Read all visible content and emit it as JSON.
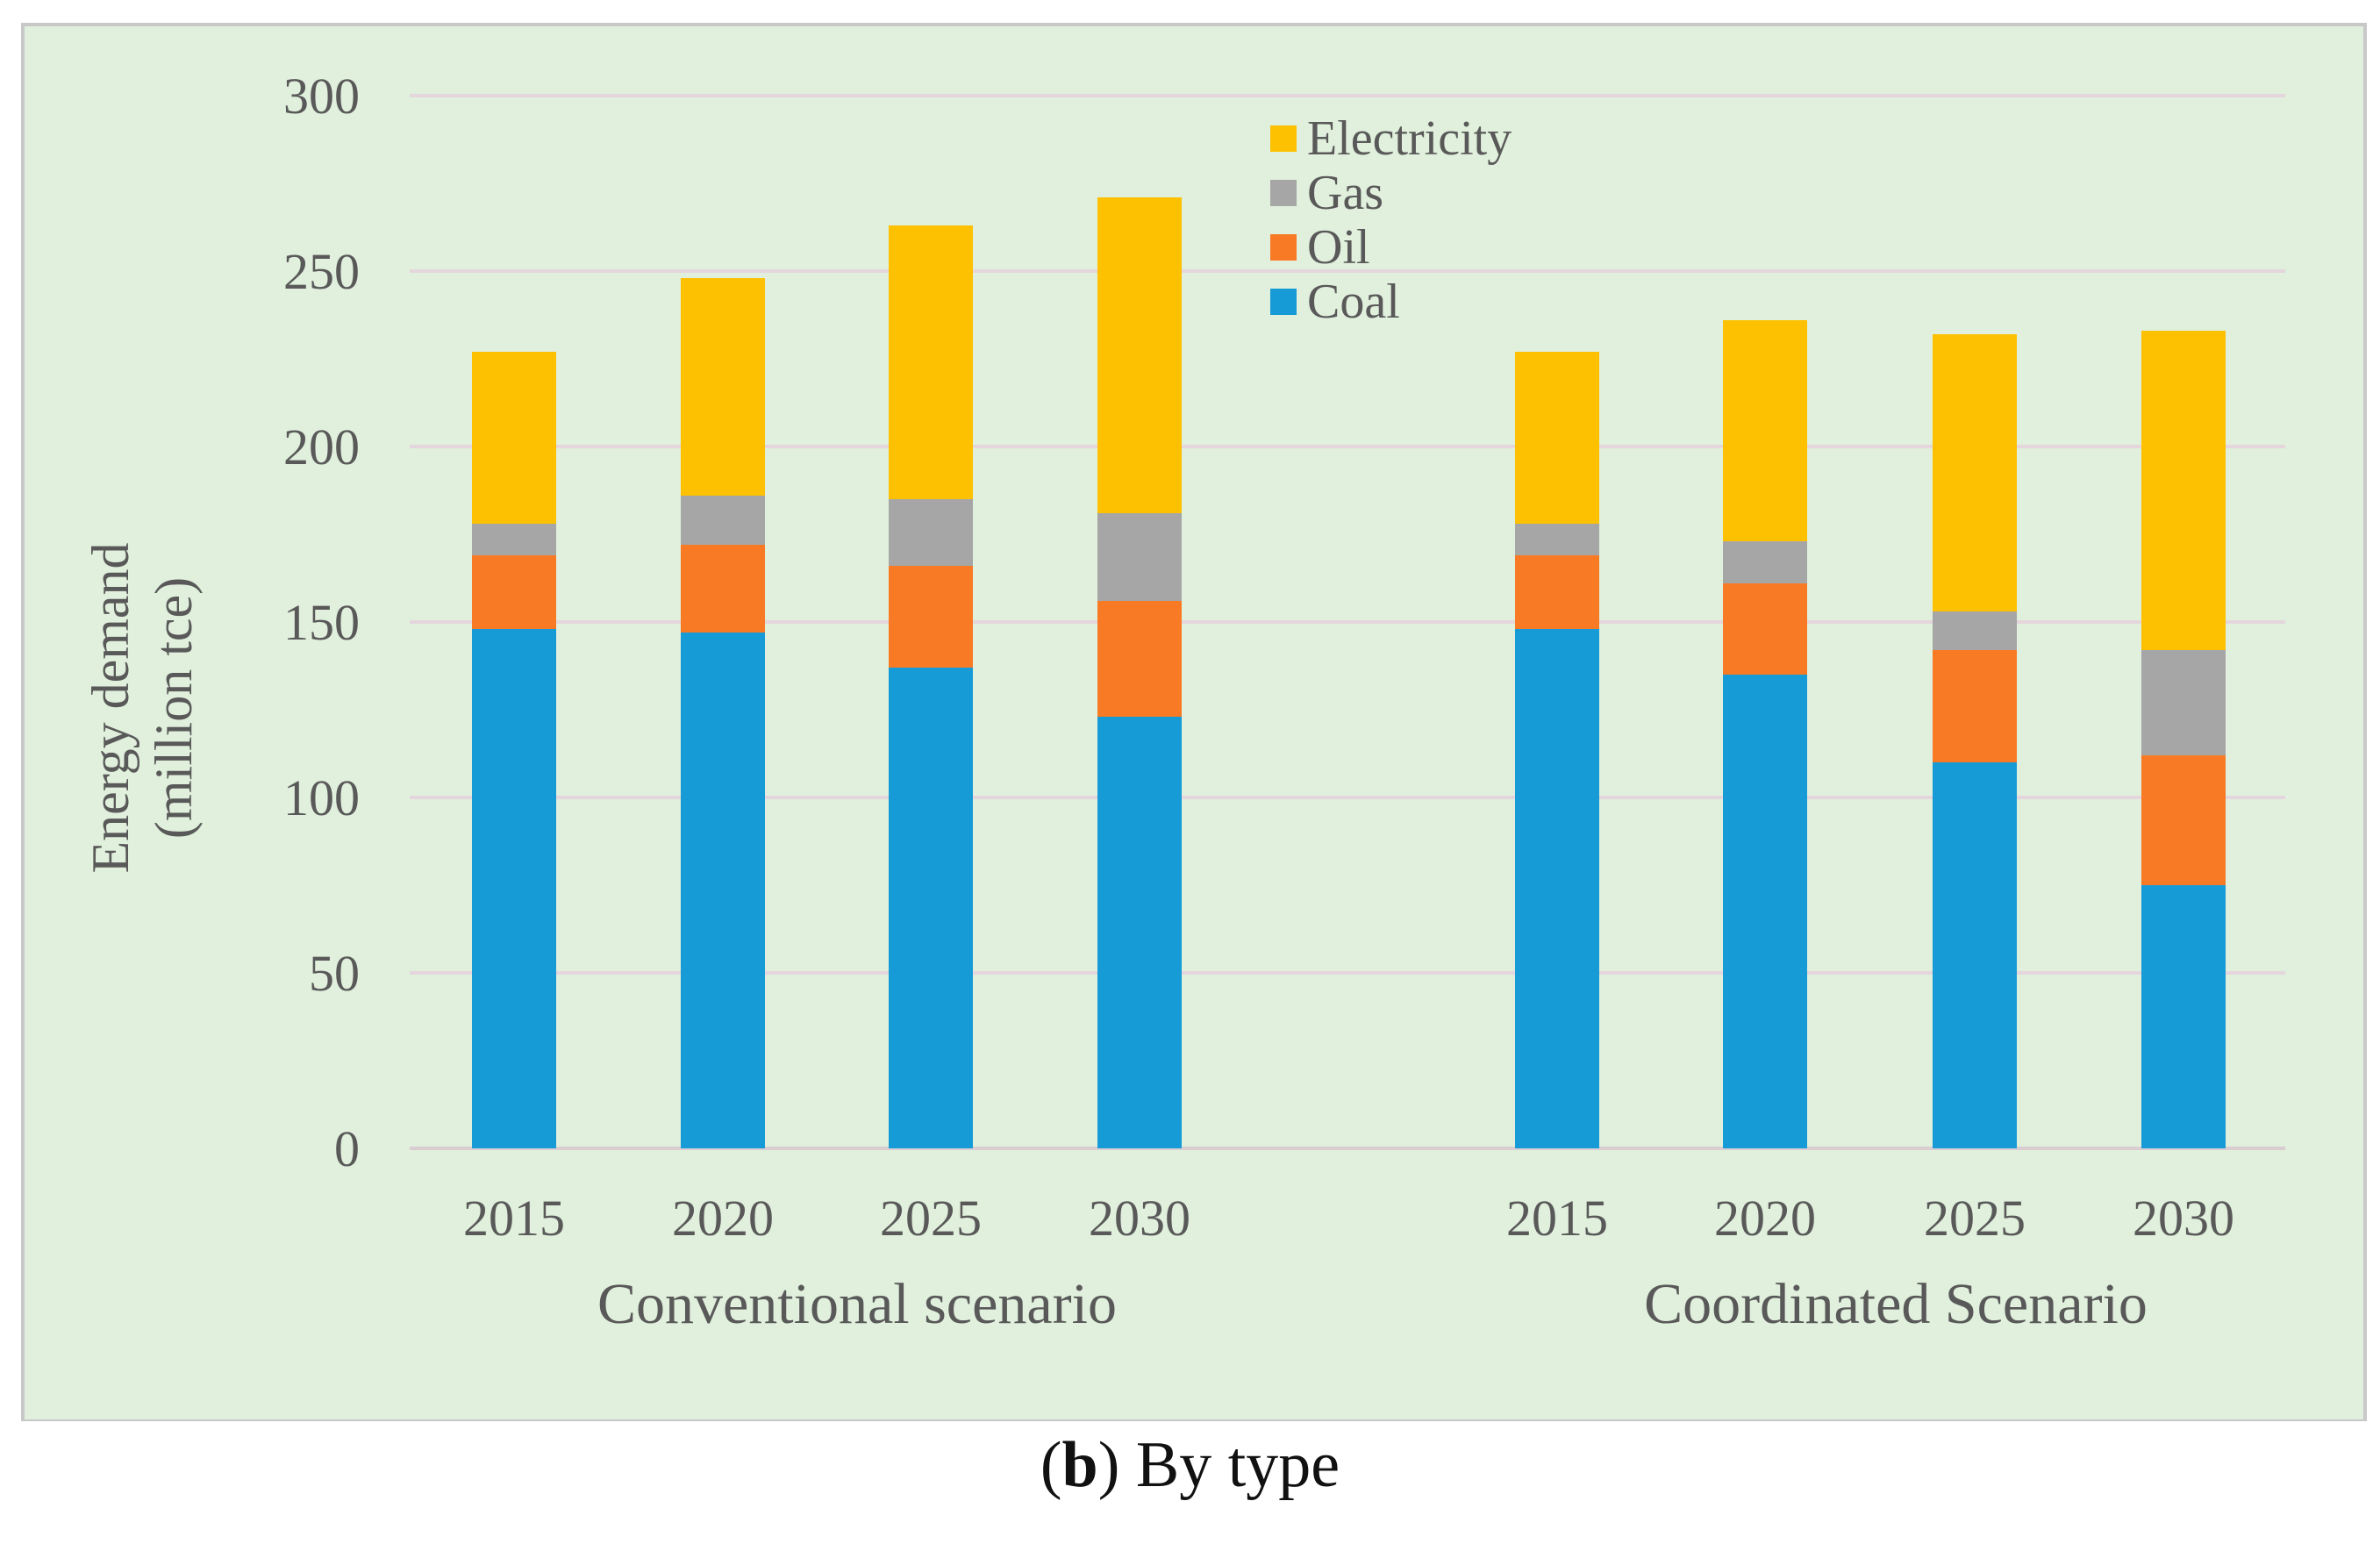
{
  "caption": {
    "open_paren": "(",
    "letter": "b",
    "rest": ") By type"
  },
  "colors": {
    "background": "#e0f0dc",
    "border": "#c8c8c8",
    "grid": "#e4d6dc",
    "axis_text": "#595959",
    "Coal": "#179bd7",
    "Oil": "#f97a24",
    "Gas": "#a6a6a6",
    "Electricity": "#fdc101"
  },
  "chart_data": {
    "type": "bar",
    "stacked": true,
    "ylabel_line1": "Energy demand",
    "ylabel_line2": "(million tce)",
    "ylim": [
      0,
      300
    ],
    "yticks": [
      0,
      50,
      100,
      150,
      200,
      250,
      300
    ],
    "grid": true,
    "legend_position": "top-center",
    "legend_order": [
      "Electricity",
      "Gas",
      "Oil",
      "Coal"
    ],
    "groups": [
      {
        "label": "Conventional scenario",
        "categories": [
          "2015",
          "2020",
          "2025",
          "2030"
        ],
        "series": [
          {
            "name": "Coal",
            "values": [
              148,
              147,
              137,
              123
            ]
          },
          {
            "name": "Oil",
            "values": [
              21,
              25,
              29,
              33
            ]
          },
          {
            "name": "Gas",
            "values": [
              9,
              14,
              19,
              25
            ]
          },
          {
            "name": "Electricity",
            "values": [
              49,
              62,
              78,
              90
            ]
          }
        ]
      },
      {
        "label": "Coordinated Scenario",
        "categories": [
          "2015",
          "2020",
          "2025",
          "2030"
        ],
        "series": [
          {
            "name": "Coal",
            "values": [
              148,
              135,
              110,
              75
            ]
          },
          {
            "name": "Oil",
            "values": [
              21,
              26,
              32,
              37
            ]
          },
          {
            "name": "Gas",
            "values": [
              9,
              12,
              11,
              30
            ]
          },
          {
            "name": "Electricity",
            "values": [
              49,
              63,
              79,
              91
            ]
          }
        ]
      }
    ]
  }
}
